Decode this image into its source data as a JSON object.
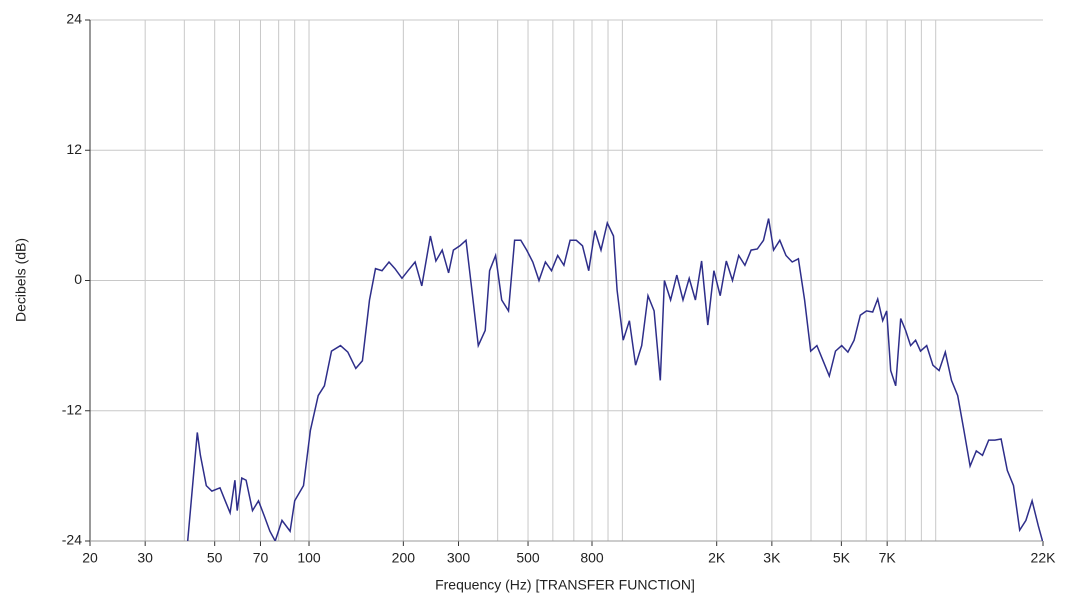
{
  "chart_data": {
    "type": "line",
    "x_label": "Frequency (Hz) [TRANSFER FUNCTION]",
    "y_label": "Decibels (dB)",
    "log_x": true,
    "grid": true,
    "color": "#2e2e8a",
    "xlim": [
      20,
      22000
    ],
    "ylim": [
      -24,
      24
    ],
    "xticks": [
      20,
      30,
      50,
      70,
      100,
      200,
      300,
      500,
      800,
      {
        "value": 2000,
        "label": "2K"
      },
      {
        "value": 3000,
        "label": "3K"
      },
      {
        "value": 5000,
        "label": "5K"
      },
      {
        "value": 7000,
        "label": "7K"
      },
      {
        "value": 22000,
        "label": "22K"
      }
    ],
    "x_minor_grid": [
      30,
      40,
      50,
      60,
      70,
      80,
      90,
      100,
      200,
      300,
      400,
      500,
      600,
      700,
      800,
      900,
      1000,
      2000,
      3000,
      4000,
      5000,
      6000,
      7000,
      8000,
      9000,
      10000
    ],
    "yticks": [
      24,
      12,
      0,
      -12,
      -24
    ],
    "x": [
      41,
      44,
      45,
      47,
      49,
      52,
      54,
      56,
      58,
      59,
      61,
      63,
      66,
      69,
      72,
      75,
      78,
      82,
      87,
      90,
      96,
      101,
      107,
      112,
      118,
      126,
      133,
      141,
      148,
      156,
      163,
      171,
      180,
      188,
      198,
      207,
      218,
      229,
      244,
      254,
      266,
      279,
      289,
      303,
      317,
      331,
      347,
      365,
      377,
      394,
      412,
      433,
      453,
      474,
      495,
      518,
      542,
      568,
      594,
      622,
      651,
      681,
      713,
      746,
      781,
      817,
      855,
      895,
      937,
      962,
      1006,
      1053,
      1102,
      1153,
      1207,
      1263,
      1322,
      1362,
      1425,
      1492,
      1561,
      1634,
      1710,
      1790,
      1873,
      1960,
      2052,
      2147,
      2247,
      2352,
      2461,
      2576,
      2696,
      2822,
      2928,
      3038,
      3180,
      3328,
      3483,
      3645,
      3815,
      3992,
      4178,
      4373,
      4577,
      4790,
      5013,
      5247,
      5491,
      5747,
      6015,
      6295,
      6529,
      6772,
      6976,
      7186,
      7453,
      7730,
      8017,
      8315,
      8624,
      8944,
      9361,
      9797,
      10253,
      10731,
      11231,
      11754,
      12302,
      12875,
      13475,
      14102,
      14759,
      15447,
      16167,
      16920,
      17708,
      18533,
      19397,
      20300,
      21246,
      21918
    ],
    "values": [
      -24,
      -14,
      -16.1,
      -18.9,
      -19.4,
      -19.1,
      -20.3,
      -21.4,
      -18.4,
      -21.2,
      -18.2,
      -18.4,
      -21.2,
      -20.3,
      -21.7,
      -23.1,
      -24,
      -22.1,
      -23.1,
      -20.3,
      -18.9,
      -13.8,
      -10.6,
      -9.7,
      -6.5,
      -6,
      -6.6,
      -8.1,
      -7.4,
      -1.8,
      1.1,
      0.9,
      1.7,
      1.1,
      0.2,
      0.9,
      1.7,
      -0.5,
      4.1,
      1.8,
      2.8,
      0.7,
      2.8,
      3.2,
      3.7,
      -0.9,
      -6,
      -4.6,
      0.9,
      2.3,
      -1.8,
      -2.8,
      3.7,
      3.7,
      2.8,
      1.7,
      0,
      1.7,
      0.9,
      2.3,
      1.4,
      3.7,
      3.7,
      3.2,
      0.9,
      4.6,
      2.8,
      5.3,
      4.1,
      -0.9,
      -5.5,
      -3.7,
      -7.8,
      -6,
      -1.4,
      -2.8,
      -9.2,
      0,
      -1.8,
      0.5,
      -1.8,
      0.2,
      -1.8,
      1.8,
      -4.1,
      0.9,
      -1.4,
      1.8,
      0,
      2.3,
      1.4,
      2.8,
      2.9,
      3.7,
      5.7,
      2.8,
      3.7,
      2.3,
      1.7,
      2,
      -1.8,
      -6.5,
      -6,
      -7.4,
      -8.8,
      -6.5,
      -6,
      -6.6,
      -5.5,
      -3.2,
      -2.8,
      -2.9,
      -1.7,
      -3.7,
      -2.8,
      -8.3,
      -9.7,
      -3.5,
      -4.6,
      -6,
      -5.5,
      -6.5,
      -6,
      -7.8,
      -8.3,
      -6.6,
      -9.2,
      -10.6,
      -13.8,
      -17.1,
      -15.7,
      -16.1,
      -14.7,
      -14.7,
      -14.6,
      -17.5,
      -18.9,
      -23,
      -22.1,
      -20.3,
      -22.6,
      -24
    ]
  }
}
